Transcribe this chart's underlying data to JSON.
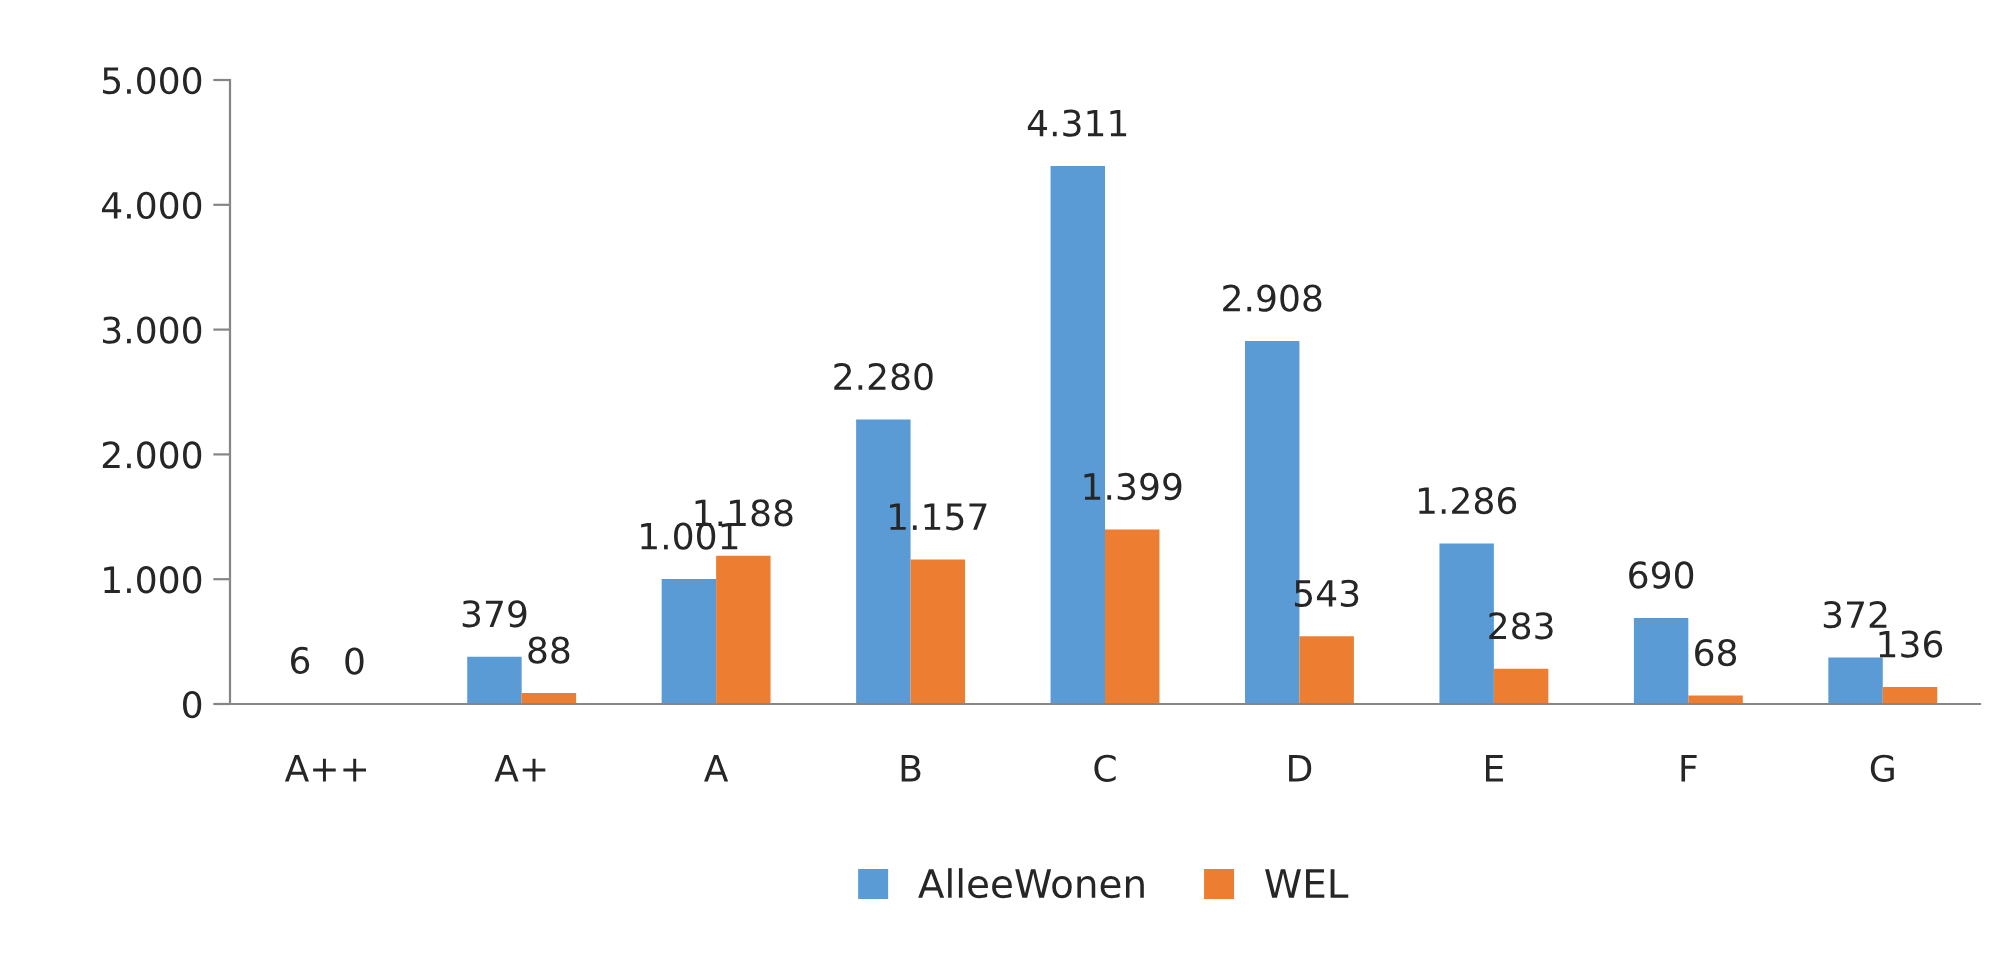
{
  "chart_data": {
    "type": "bar",
    "categories": [
      "A++",
      "A+",
      "A",
      "B",
      "C",
      "D",
      "E",
      "F",
      "G"
    ],
    "series": [
      {
        "name": "AlleeWonen",
        "color": "#5b9bd5",
        "values": [
          6,
          379,
          1001,
          2280,
          4311,
          2908,
          1286,
          690,
          372
        ],
        "value_labels": [
          "6",
          "379",
          "1.001",
          "2.280",
          "4.311",
          "2.908",
          "1.286",
          "690",
          "372"
        ]
      },
      {
        "name": "WEL",
        "color": "#ed7d31",
        "values": [
          0,
          88,
          1188,
          1157,
          1399,
          543,
          283,
          68,
          136
        ],
        "value_labels": [
          "0",
          "88",
          "1.188",
          "1.157",
          "1.399",
          "543",
          "283",
          "68",
          "136"
        ]
      }
    ],
    "ylim": [
      0,
      5000
    ],
    "yticks": [
      {
        "value": 0,
        "label": "0"
      },
      {
        "value": 1000,
        "label": "1.000"
      },
      {
        "value": 2000,
        "label": "2.000"
      },
      {
        "value": 3000,
        "label": "3.000"
      },
      {
        "value": 4000,
        "label": "4.000"
      },
      {
        "value": 5000,
        "label": "5.000"
      }
    ],
    "grid": false,
    "legend": "bottom"
  }
}
